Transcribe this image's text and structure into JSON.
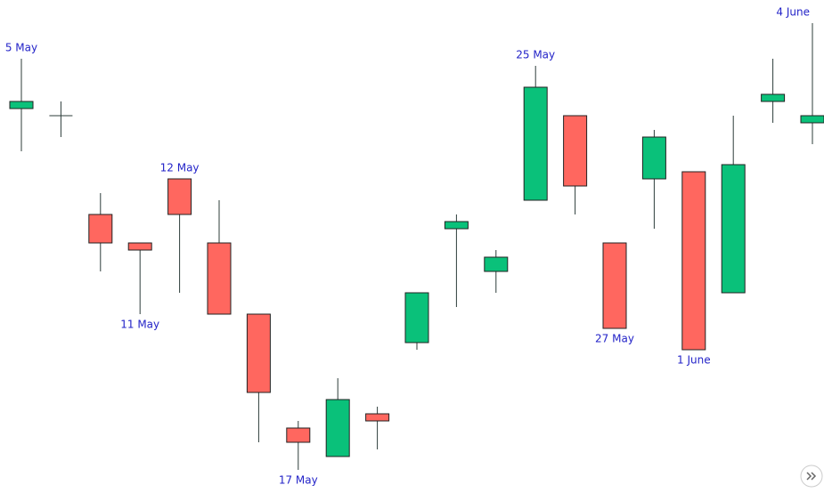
{
  "chart_data": {
    "type": "candlestick",
    "up_color": "#0ac17a",
    "down_color": "#ff675f",
    "wick_color": "#2d3d3a",
    "label_color": "#2323c8",
    "open": [
      432,
      424,
      313,
      281,
      353,
      281,
      201,
      73,
      41,
      89,
      169,
      297,
      249,
      329,
      424,
      281,
      353,
      361,
      225,
      440,
      416
    ],
    "high": [
      488,
      440,
      337,
      281,
      353,
      329,
      201,
      81,
      129,
      97,
      225,
      313,
      273,
      480,
      424,
      281,
      408,
      361,
      424,
      488,
      528
    ],
    "low": [
      384,
      400,
      249,
      201,
      225,
      201,
      57,
      26,
      41,
      49,
      161,
      209,
      225,
      329,
      313,
      185,
      297,
      161,
      225,
      416,
      392
    ],
    "close": [
      440,
      424,
      281,
      273,
      313,
      201,
      113,
      57,
      105,
      81,
      225,
      305,
      265,
      456,
      345,
      185,
      400,
      161,
      369,
      448,
      424
    ],
    "annotations": [
      {
        "category": 0,
        "text": "5 May",
        "anchor": "high"
      },
      {
        "category": 3,
        "text": "11 May",
        "anchor": "low"
      },
      {
        "category": 4,
        "text": "12 May",
        "anchor": "high"
      },
      {
        "category": 7,
        "text": "17 May",
        "anchor": "low"
      },
      {
        "category": 13,
        "text": "25 May",
        "anchor": "high"
      },
      {
        "category": 15,
        "text": "27 May",
        "anchor": "low"
      },
      {
        "category": 17,
        "text": "1 June",
        "anchor": "low"
      },
      {
        "category": 20,
        "text": "4 June",
        "anchor": "high"
      }
    ]
  }
}
